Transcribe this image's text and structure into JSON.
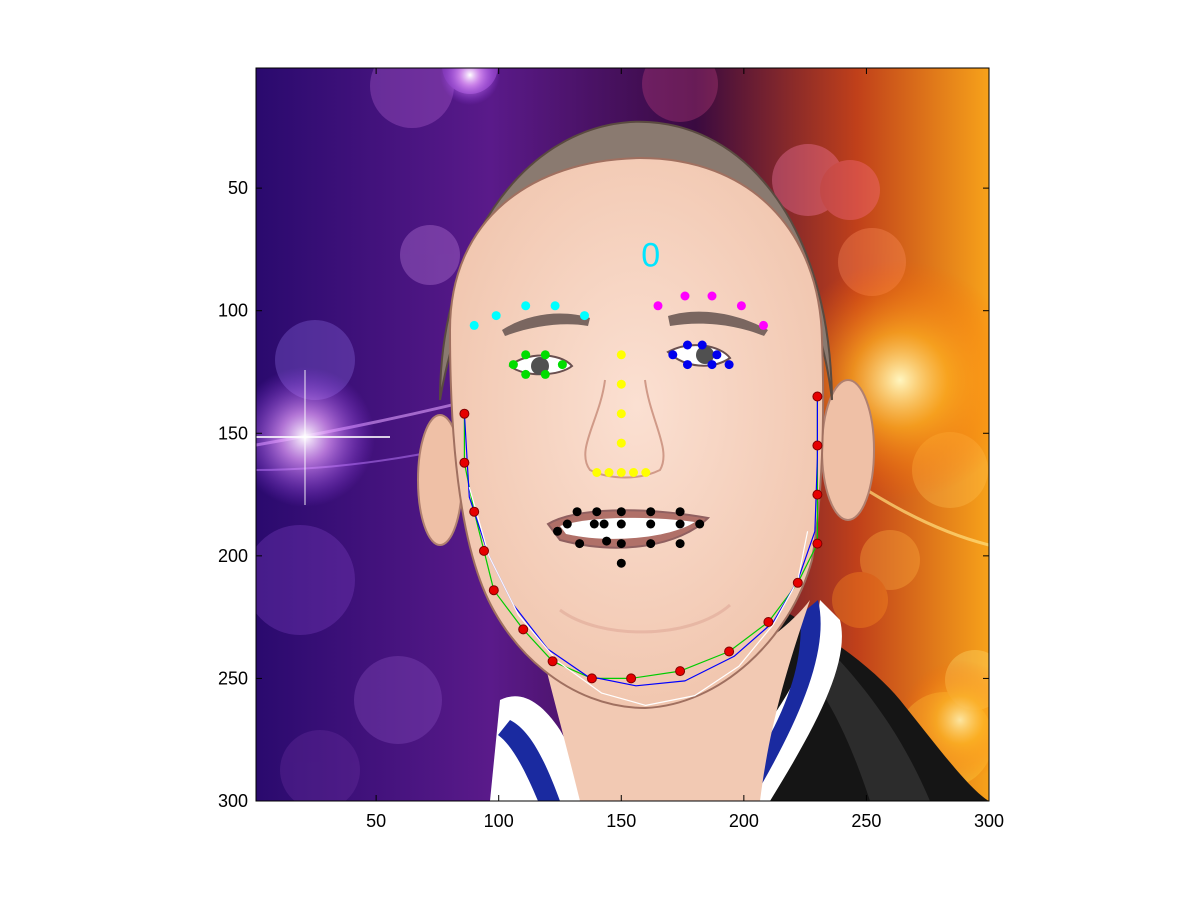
{
  "chart_data": {
    "type": "scatter",
    "title": "",
    "xlabel": "",
    "ylabel": "",
    "xlim": [
      1,
      300
    ],
    "ylim": [
      300,
      1
    ],
    "y_axis_direction": "downward",
    "x_ticks": [
      50,
      100,
      150,
      200,
      250,
      300
    ],
    "y_ticks": [
      50,
      100,
      150,
      200,
      250,
      300
    ],
    "grid": false,
    "background": "cartoon face portrait image on a purple and orange bokeh background",
    "annotation": {
      "text": "0",
      "x": 162,
      "y": 77,
      "color": "#00e5ff"
    },
    "series": [
      {
        "color": "#00ffff",
        "points": [
          [
            90,
            106
          ],
          [
            99,
            102
          ],
          [
            111,
            98
          ],
          [
            123,
            98
          ],
          [
            135,
            102
          ]
        ]
      },
      {
        "color": "#ff00ff",
        "points": [
          [
            165,
            98
          ],
          [
            176,
            94
          ],
          [
            187,
            94
          ],
          [
            199,
            98
          ],
          [
            208,
            106
          ]
        ]
      },
      {
        "color": "#00dd00",
        "points": [
          [
            106,
            122
          ],
          [
            111,
            118
          ],
          [
            119,
            118
          ],
          [
            126,
            122
          ],
          [
            119,
            126
          ],
          [
            111,
            126
          ]
        ]
      },
      {
        "color": "#0000ee",
        "points": [
          [
            171,
            118
          ],
          [
            177,
            114
          ],
          [
            183,
            114
          ],
          [
            189,
            118
          ],
          [
            194,
            122
          ],
          [
            187,
            122
          ],
          [
            177,
            122
          ]
        ]
      },
      {
        "color": "#ffff00",
        "points": [
          [
            150,
            118
          ],
          [
            150,
            130
          ],
          [
            150,
            142
          ],
          [
            150,
            154
          ],
          [
            140,
            166
          ],
          [
            145,
            166
          ],
          [
            150,
            166
          ],
          [
            155,
            166
          ],
          [
            160,
            166
          ]
        ]
      },
      {
        "color": "#000000",
        "points": [
          [
            124,
            190
          ],
          [
            128,
            187
          ],
          [
            132,
            182
          ],
          [
            133,
            195
          ],
          [
            139,
            187
          ],
          [
            140,
            182
          ],
          [
            143,
            187
          ],
          [
            144,
            194
          ],
          [
            150,
            187
          ],
          [
            150,
            182
          ],
          [
            150,
            195
          ],
          [
            150,
            203
          ],
          [
            162,
            187
          ],
          [
            162,
            182
          ],
          [
            162,
            195
          ],
          [
            174,
            187
          ],
          [
            174,
            182
          ],
          [
            174,
            195
          ],
          [
            182,
            187
          ]
        ]
      },
      {
        "color": "#e60000",
        "points": [
          [
            86,
            142
          ],
          [
            86,
            162
          ],
          [
            90,
            182
          ],
          [
            94,
            198
          ],
          [
            98,
            214
          ],
          [
            110,
            230
          ],
          [
            122,
            243
          ],
          [
            138,
            250
          ],
          [
            154,
            250
          ],
          [
            174,
            247
          ],
          [
            194,
            239
          ],
          [
            210,
            227
          ],
          [
            222,
            211
          ],
          [
            230,
            195
          ],
          [
            230,
            175
          ],
          [
            230,
            155
          ],
          [
            230,
            135
          ]
        ]
      }
    ],
    "curves": [
      {
        "color": "#00cc00",
        "points": [
          [
            86,
            142
          ],
          [
            86,
            162
          ],
          [
            90,
            182
          ],
          [
            94,
            198
          ],
          [
            98,
            214
          ],
          [
            110,
            230
          ],
          [
            122,
            243
          ],
          [
            138,
            250
          ],
          [
            154,
            250
          ],
          [
            174,
            247
          ],
          [
            194,
            239
          ],
          [
            210,
            227
          ],
          [
            222,
            211
          ],
          [
            230,
            195
          ],
          [
            230,
            175
          ],
          [
            230,
            155
          ],
          [
            230,
            135
          ]
        ]
      },
      {
        "color": "#0000ff",
        "points": [
          [
            86,
            142
          ],
          [
            88,
            176
          ],
          [
            96,
            200
          ],
          [
            106,
            220
          ],
          [
            120,
            238
          ],
          [
            136,
            249
          ],
          [
            156,
            253
          ],
          [
            176,
            251
          ],
          [
            196,
            241
          ],
          [
            212,
            227
          ],
          [
            222,
            210
          ],
          [
            229,
            190
          ],
          [
            230,
            160
          ],
          [
            230,
            135
          ]
        ]
      },
      {
        "color": "#ffffff",
        "points": [
          [
            88,
            172
          ],
          [
            96,
            200
          ],
          [
            108,
            224
          ],
          [
            124,
            243
          ],
          [
            142,
            256
          ],
          [
            160,
            261
          ],
          [
            180,
            257
          ],
          [
            198,
            245
          ],
          [
            212,
            228
          ],
          [
            222,
            210
          ],
          [
            226,
            190
          ]
        ]
      }
    ]
  }
}
